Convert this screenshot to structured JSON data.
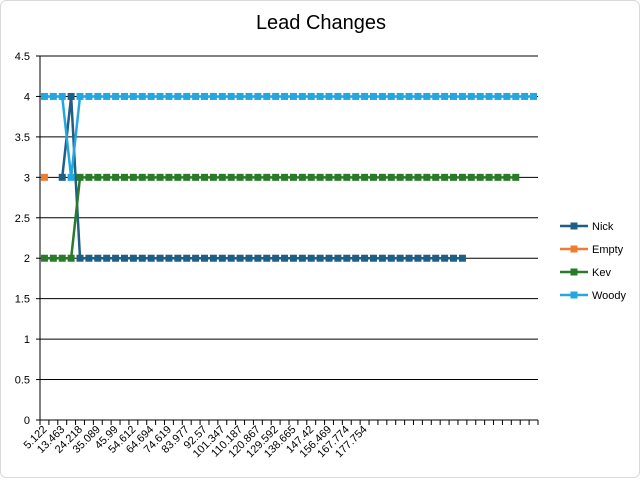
{
  "chart_data": {
    "type": "line",
    "title": "Lead Changes",
    "xlabel": "",
    "ylabel": "",
    "ylim": [
      0,
      4.5
    ],
    "yticks": [
      "0",
      "0.5",
      "1",
      "1.5",
      "2",
      "2.5",
      "3",
      "3.5",
      "4",
      "4.5"
    ],
    "x_tick_labels": [
      "5.122",
      "13.463",
      "24.218",
      "35.089",
      "45.99",
      "54.612",
      "64.694",
      "74.619",
      "83.977",
      "92.57",
      "101.347",
      "110.187",
      "120.867",
      "129.592",
      "138.665",
      "147.42",
      "156.469",
      "167.774",
      "177.754"
    ],
    "category_count": 56,
    "grid": "horizontal",
    "legend_position": "right",
    "colors": {
      "Nick": "#1f5f86",
      "Empty": "#ed7d31",
      "Kev": "#2a7a2a",
      "Woody": "#23a7e0"
    },
    "series": [
      {
        "name": "Nick",
        "values": [
          null,
          null,
          3,
          4,
          2,
          2,
          2,
          2,
          2,
          2,
          2,
          2,
          2,
          2,
          2,
          2,
          2,
          2,
          2,
          2,
          2,
          2,
          2,
          2,
          2,
          2,
          2,
          2,
          2,
          2,
          2,
          2,
          2,
          2,
          2,
          2,
          2,
          2,
          2,
          2,
          2,
          2,
          2,
          2,
          2,
          2,
          2,
          2
        ]
      },
      {
        "name": "Empty",
        "values": [
          3
        ]
      },
      {
        "name": "Kev",
        "values": [
          2,
          2,
          2,
          2,
          3,
          3,
          3,
          3,
          3,
          3,
          3,
          3,
          3,
          3,
          3,
          3,
          3,
          3,
          3,
          3,
          3,
          3,
          3,
          3,
          3,
          3,
          3,
          3,
          3,
          3,
          3,
          3,
          3,
          3,
          3,
          3,
          3,
          3,
          3,
          3,
          3,
          3,
          3,
          3,
          3,
          3,
          3,
          3,
          3,
          3,
          3,
          3,
          3,
          3
        ]
      },
      {
        "name": "Woody",
        "values": [
          4,
          4,
          4,
          3,
          4,
          4,
          4,
          4,
          4,
          4,
          4,
          4,
          4,
          4,
          4,
          4,
          4,
          4,
          4,
          4,
          4,
          4,
          4,
          4,
          4,
          4,
          4,
          4,
          4,
          4,
          4,
          4,
          4,
          4,
          4,
          4,
          4,
          4,
          4,
          4,
          4,
          4,
          4,
          4,
          4,
          4,
          4,
          4,
          4,
          4,
          4,
          4,
          4,
          4,
          4,
          4
        ]
      }
    ]
  }
}
